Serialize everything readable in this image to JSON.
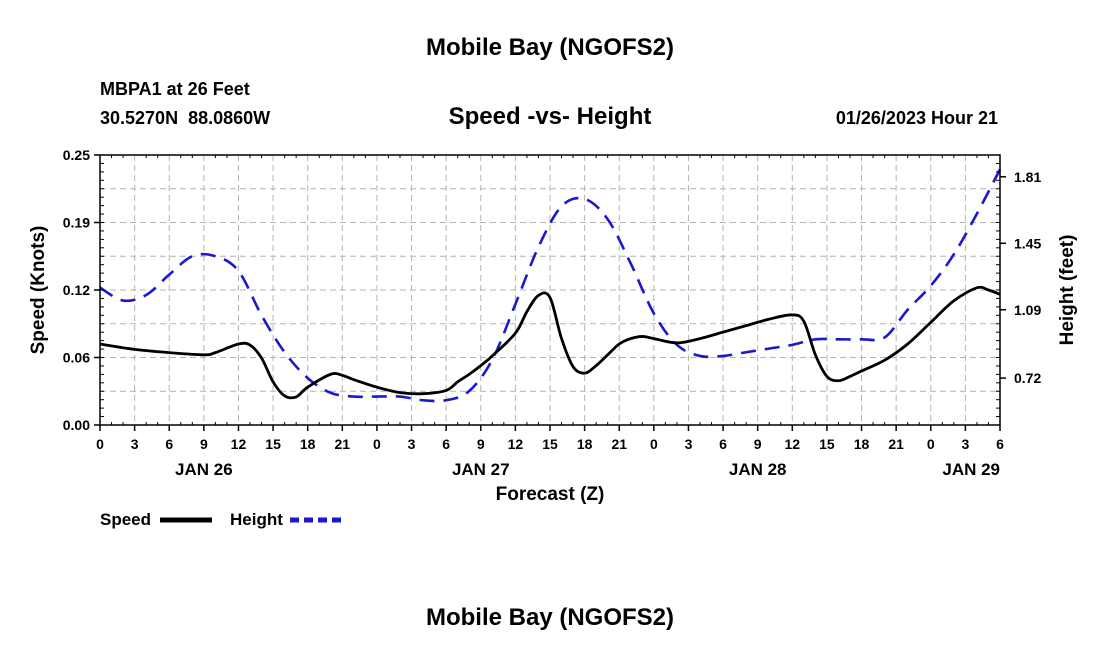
{
  "header": {
    "title": "Mobile Bay (NGOFS2)",
    "station": "MBPA1 at 26 Feet",
    "coords": "30.5270N  88.0860W",
    "datetime": "01/26/2023 Hour 21"
  },
  "footer": {
    "title": "Mobile Bay (NGOFS2)"
  },
  "colors": {
    "speed": "#000000",
    "height": "#1a1acc",
    "grid": "#b3b3b3"
  },
  "chart_data": {
    "type": "line",
    "title": "Speed -vs- Height",
    "xlabel": "Forecast (Z)",
    "ylabel": "Speed (Knots)",
    "y2label": "Height (feet)",
    "xlim": [
      0,
      78
    ],
    "ylim": [
      0,
      0.25
    ],
    "y2lim": [
      0.466,
      1.928
    ],
    "yticks": [
      "0.00",
      "0.06",
      "0.12",
      "0.19",
      "0.25"
    ],
    "y2ticks": [
      {
        "value": 0.72,
        "label": "0.72"
      },
      {
        "value": 1.09,
        "label": "1.09"
      },
      {
        "value": 1.45,
        "label": "1.45"
      },
      {
        "value": 1.81,
        "label": "1.81"
      }
    ],
    "xtick_labels": [
      "0",
      "3",
      "6",
      "9",
      "12",
      "15",
      "18",
      "21",
      "0",
      "3",
      "6",
      "9",
      "12",
      "15",
      "18",
      "21",
      "0",
      "3",
      "6",
      "9",
      "12",
      "15",
      "18",
      "21",
      "0",
      "3",
      "6"
    ],
    "date_labels": [
      {
        "hour": 9,
        "label": "JAN 26"
      },
      {
        "hour": 33,
        "label": "JAN 27"
      },
      {
        "hour": 57,
        "label": "JAN 28"
      },
      {
        "hour": 78,
        "label": "JAN 29"
      }
    ],
    "legend": [
      {
        "name": "Speed",
        "style": "solid"
      },
      {
        "name": "Height",
        "style": "dashed"
      }
    ],
    "series": [
      {
        "name": "Speed",
        "axis": "left",
        "x": [
          0,
          3,
          6,
          9,
          10,
          12,
          13,
          14,
          15,
          16,
          17,
          18,
          20,
          21,
          22,
          24,
          26,
          28,
          30,
          31,
          32,
          33,
          34,
          36,
          37,
          38,
          39,
          40,
          41,
          42,
          43,
          44,
          45,
          46,
          47,
          48,
          50,
          52,
          54,
          56,
          58,
          60,
          61,
          62,
          63,
          64,
          65,
          66,
          68,
          70,
          72,
          74,
          76,
          77,
          78
        ],
        "y": [
          0.075,
          0.07,
          0.067,
          0.065,
          0.067,
          0.075,
          0.074,
          0.062,
          0.04,
          0.027,
          0.026,
          0.035,
          0.047,
          0.046,
          0.042,
          0.035,
          0.03,
          0.029,
          0.032,
          0.04,
          0.047,
          0.055,
          0.064,
          0.085,
          0.105,
          0.12,
          0.118,
          0.08,
          0.054,
          0.048,
          0.055,
          0.065,
          0.075,
          0.08,
          0.082,
          0.08,
          0.076,
          0.08,
          0.086,
          0.092,
          0.098,
          0.102,
          0.096,
          0.065,
          0.045,
          0.041,
          0.045,
          0.05,
          0.06,
          0.075,
          0.095,
          0.115,
          0.127,
          0.125,
          0.121
        ]
      },
      {
        "name": "Height",
        "axis": "right",
        "x": [
          0,
          2,
          4,
          6,
          8,
          10,
          12,
          14,
          16,
          18,
          20,
          22,
          24,
          26,
          28,
          30,
          32,
          34,
          36,
          38,
          40,
          42,
          44,
          46,
          48,
          50,
          52,
          54,
          56,
          58,
          60,
          62,
          64,
          66,
          68,
          70,
          72,
          74,
          76,
          78
        ],
        "y": [
          1.21,
          1.14,
          1.17,
          1.28,
          1.38,
          1.38,
          1.3,
          1.06,
          0.86,
          0.72,
          0.64,
          0.62,
          0.62,
          0.62,
          0.6,
          0.6,
          0.65,
          0.82,
          1.12,
          1.43,
          1.65,
          1.69,
          1.58,
          1.34,
          1.07,
          0.9,
          0.84,
          0.84,
          0.86,
          0.88,
          0.9,
          0.93,
          0.93,
          0.93,
          0.94,
          1.09,
          1.22,
          1.39,
          1.61,
          1.85
        ]
      }
    ]
  }
}
